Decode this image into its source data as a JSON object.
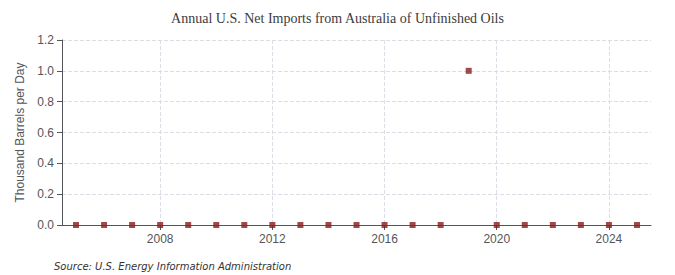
{
  "chart_data": {
    "type": "scatter",
    "title": "Annual U.S. Net Imports from Australia of Unfinished Oils",
    "ylabel": "Thousand Barrels per Day",
    "annotations": [
      "Source: U.S. Energy Information Administration"
    ],
    "x": [
      2005,
      2006,
      2007,
      2008,
      2009,
      2010,
      2011,
      2012,
      2013,
      2014,
      2015,
      2016,
      2017,
      2018,
      2019,
      2020,
      2021,
      2022,
      2023,
      2024,
      2025
    ],
    "values": [
      0,
      0,
      0,
      0,
      0,
      0,
      0,
      0,
      0.0,
      0.0,
      0.0,
      0.0,
      0,
      0,
      1.0,
      0.0,
      0.0,
      0.0,
      0.0,
      0.0,
      0
    ],
    "color": "#8b1a1a",
    "marker": "square",
    "xlim": [
      2004.5,
      2025.5
    ],
    "ylim": [
      0,
      1.2
    ],
    "xticks": [
      2008,
      2012,
      2016,
      2020,
      2024
    ],
    "yticks": [
      {
        "value": 0.0,
        "label": "0.0"
      },
      0.2,
      0.4,
      0.6,
      0.8,
      {
        "value": 1.0,
        "label": "1.0"
      },
      1.2
    ],
    "grid": true
  }
}
